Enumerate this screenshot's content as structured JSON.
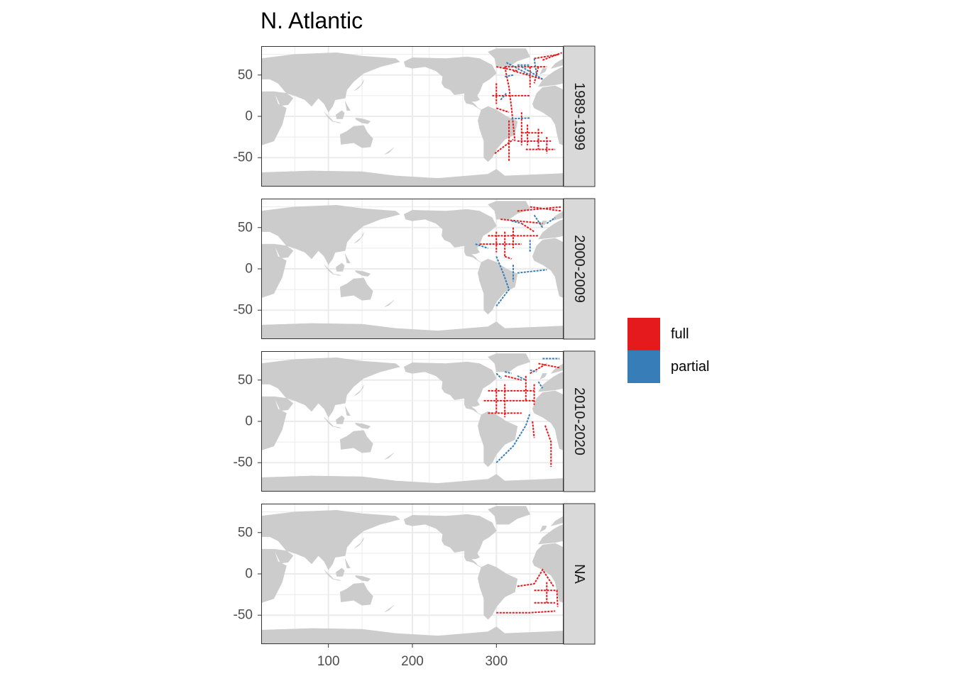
{
  "chart_data": {
    "type": "map-faceted",
    "title": "N. Atlantic",
    "xlabel": "",
    "ylabel": "",
    "xlim": [
      20,
      380
    ],
    "ylim": [
      -85,
      85
    ],
    "x_ticks": [
      100,
      200,
      300
    ],
    "x_tick_labels": [
      "100",
      "200",
      "300"
    ],
    "y_ticks": [
      50,
      0,
      -50
    ],
    "y_tick_labels": [
      "50",
      "0",
      "-50"
    ],
    "grid": true,
    "legend": {
      "placement": "right",
      "title": "",
      "entries": [
        {
          "label": "full",
          "color": "#e41a1c"
        },
        {
          "label": "partial",
          "color": "#377eb8"
        }
      ]
    },
    "facets": [
      {
        "label": "1989-1999",
        "tracks": [
          {
            "type": "full",
            "points": [
              [
                310,
                60
              ],
              [
                315,
                35
              ],
              [
                318,
                10
              ],
              [
                320,
                -10
              ],
              [
                322,
                -30
              ]
            ]
          },
          {
            "type": "full",
            "points": [
              [
                295,
                25
              ],
              [
                340,
                25
              ]
            ]
          },
          {
            "type": "full",
            "points": [
              [
                300,
                40
              ],
              [
                300,
                15
              ]
            ]
          },
          {
            "type": "full",
            "points": [
              [
                315,
                -5
              ],
              [
                315,
                -55
              ]
            ]
          },
          {
            "type": "full",
            "points": [
              [
                330,
                5
              ],
              [
                330,
                -35
              ]
            ]
          },
          {
            "type": "full",
            "points": [
              [
                337,
                -10
              ],
              [
                337,
                -35
              ]
            ]
          },
          {
            "type": "full",
            "points": [
              [
                350,
                -15
              ],
              [
                350,
                -40
              ]
            ]
          },
          {
            "type": "full",
            "points": [
              [
                360,
                -25
              ],
              [
                360,
                -45
              ]
            ]
          },
          {
            "type": "full",
            "points": [
              [
                330,
                -20
              ],
              [
                355,
                -20
              ]
            ]
          },
          {
            "type": "full",
            "points": [
              [
                325,
                -30
              ],
              [
                365,
                -30
              ]
            ]
          },
          {
            "type": "full",
            "points": [
              [
                298,
                -45
              ],
              [
                320,
                -28
              ]
            ]
          },
          {
            "type": "full",
            "points": [
              [
                335,
                -40
              ],
              [
                370,
                -40
              ]
            ]
          },
          {
            "type": "full",
            "points": [
              [
                300,
                10
              ],
              [
                315,
                5
              ]
            ]
          },
          {
            "type": "full",
            "points": [
              [
                310,
                60
              ],
              [
                360,
                60
              ]
            ]
          },
          {
            "type": "full",
            "points": [
              [
                320,
                55
              ],
              [
                355,
                45
              ]
            ]
          },
          {
            "type": "full",
            "points": [
              [
                345,
                70
              ],
              [
                375,
                75
              ]
            ]
          },
          {
            "type": "full",
            "points": [
              [
                355,
                68
              ],
              [
                378,
                77
              ]
            ]
          },
          {
            "type": "full",
            "points": [
              [
                340,
                60
              ],
              [
                340,
                35
              ]
            ]
          },
          {
            "type": "full",
            "points": [
              [
                350,
                60
              ],
              [
                345,
                40
              ]
            ]
          },
          {
            "type": "full",
            "points": [
              [
                300,
                60
              ],
              [
                325,
                55
              ]
            ]
          },
          {
            "type": "partial",
            "points": [
              [
                312,
                65
              ],
              [
                340,
                50
              ]
            ]
          },
          {
            "type": "partial",
            "points": [
              [
                330,
                60
              ],
              [
                355,
                45
              ]
            ]
          },
          {
            "type": "partial",
            "points": [
              [
                310,
                48
              ],
              [
                320,
                50
              ]
            ]
          },
          {
            "type": "partial",
            "points": [
              [
                318,
                -3
              ],
              [
                340,
                -2
              ]
            ]
          },
          {
            "type": "partial",
            "points": [
              [
                345,
                70
              ],
              [
                348,
                50
              ]
            ]
          },
          {
            "type": "partial",
            "points": [
              [
                325,
                62
              ],
              [
                340,
                62
              ]
            ]
          },
          {
            "type": "partial",
            "points": [
              [
                305,
                20
              ],
              [
                312,
                28
              ]
            ]
          }
        ]
      },
      {
        "label": "2000-2009",
        "tracks": [
          {
            "type": "full",
            "points": [
              [
                290,
                40
              ],
              [
                350,
                40
              ]
            ]
          },
          {
            "type": "full",
            "points": [
              [
                280,
                30
              ],
              [
                330,
                30
              ]
            ]
          },
          {
            "type": "full",
            "points": [
              [
                300,
                45
              ],
              [
                300,
                20
              ]
            ]
          },
          {
            "type": "full",
            "points": [
              [
                310,
                45
              ],
              [
                310,
                15
              ]
            ]
          },
          {
            "type": "full",
            "points": [
              [
                320,
                50
              ],
              [
                320,
                25
              ]
            ]
          },
          {
            "type": "full",
            "points": [
              [
                305,
                60
              ],
              [
                355,
                55
              ]
            ]
          },
          {
            "type": "full",
            "points": [
              [
                325,
                70
              ],
              [
                378,
                75
              ]
            ]
          },
          {
            "type": "full",
            "points": [
              [
                340,
                75
              ],
              [
                378,
                70
              ]
            ]
          },
          {
            "type": "full",
            "points": [
              [
                330,
                55
              ],
              [
                345,
                45
              ]
            ]
          },
          {
            "type": "full",
            "points": [
              [
                310,
                15
              ],
              [
                318,
                12
              ]
            ]
          },
          {
            "type": "partial",
            "points": [
              [
                300,
                15
              ],
              [
                308,
                -5
              ],
              [
                315,
                -25
              ],
              [
                300,
                -45
              ]
            ]
          },
          {
            "type": "partial",
            "points": [
              [
                325,
                -5
              ],
              [
                360,
                -1
              ]
            ]
          },
          {
            "type": "partial",
            "points": [
              [
                340,
                35
              ],
              [
                340,
                20
              ]
            ]
          },
          {
            "type": "partial",
            "points": [
              [
                345,
                65
              ],
              [
                355,
                50
              ]
            ]
          },
          {
            "type": "partial",
            "points": [
              [
                360,
                55
              ],
              [
                370,
                62
              ]
            ]
          },
          {
            "type": "partial",
            "points": [
              [
                275,
                30
              ],
              [
                290,
                25
              ]
            ]
          },
          {
            "type": "partial",
            "points": [
              [
                318,
                58
              ],
              [
                330,
                55
              ]
            ]
          },
          {
            "type": "partial",
            "points": [
              [
                320,
                5
              ],
              [
                320,
                -15
              ]
            ]
          }
        ]
      },
      {
        "label": "2010-2020",
        "tracks": [
          {
            "type": "full",
            "points": [
              [
                290,
                37
              ],
              [
                345,
                37
              ]
            ]
          },
          {
            "type": "full",
            "points": [
              [
                285,
                25
              ],
              [
                345,
                25
              ]
            ]
          },
          {
            "type": "full",
            "points": [
              [
                290,
                10
              ],
              [
                330,
                10
              ]
            ]
          },
          {
            "type": "full",
            "points": [
              [
                300,
                40
              ],
              [
                300,
                10
              ]
            ]
          },
          {
            "type": "full",
            "points": [
              [
                310,
                45
              ],
              [
                310,
                5
              ]
            ]
          },
          {
            "type": "full",
            "points": [
              [
                335,
                55
              ],
              [
                335,
                25
              ]
            ]
          },
          {
            "type": "full",
            "points": [
              [
                345,
                45
              ],
              [
                345,
                20
              ]
            ]
          },
          {
            "type": "full",
            "points": [
              [
                310,
                55
              ],
              [
                330,
                50
              ]
            ]
          },
          {
            "type": "full",
            "points": [
              [
                340,
                58
              ],
              [
                360,
                70
              ]
            ]
          },
          {
            "type": "full",
            "points": [
              [
                350,
                70
              ],
              [
                375,
                65
              ]
            ]
          },
          {
            "type": "full",
            "points": [
              [
                358,
                -5
              ],
              [
                365,
                -25
              ],
              [
                365,
                -55
              ]
            ]
          },
          {
            "type": "full",
            "points": [
              [
                343,
                0
              ],
              [
                345,
                -20
              ]
            ]
          },
          {
            "type": "partial",
            "points": [
              [
                300,
                -50
              ],
              [
                320,
                -30
              ],
              [
                335,
                -5
              ],
              [
                340,
                10
              ]
            ]
          },
          {
            "type": "partial",
            "points": [
              [
                325,
                55
              ],
              [
                335,
                50
              ]
            ]
          },
          {
            "type": "partial",
            "points": [
              [
                310,
                60
              ],
              [
                318,
                58
              ]
            ]
          },
          {
            "type": "partial",
            "points": [
              [
                340,
                62
              ],
              [
                348,
                60
              ]
            ]
          },
          {
            "type": "partial",
            "points": [
              [
                355,
                76
              ],
              [
                375,
                76
              ]
            ]
          },
          {
            "type": "partial",
            "points": [
              [
                350,
                48
              ],
              [
                355,
                40
              ]
            ]
          },
          {
            "type": "partial",
            "points": [
              [
                300,
                58
              ],
              [
                306,
                52
              ]
            ]
          }
        ]
      },
      {
        "label": "NA",
        "tracks": [
          {
            "type": "full",
            "points": [
              [
                300,
                -47
              ],
              [
                340,
                -47
              ],
              [
                370,
                -45
              ]
            ]
          },
          {
            "type": "full",
            "points": [
              [
                345,
                -20
              ],
              [
                372,
                -20
              ],
              [
                373,
                -40
              ]
            ]
          },
          {
            "type": "full",
            "points": [
              [
                325,
                -15
              ],
              [
                345,
                -12
              ],
              [
                355,
                5
              ],
              [
                368,
                -15
              ]
            ]
          },
          {
            "type": "full",
            "points": [
              [
                345,
                -35
              ],
              [
                370,
                -35
              ]
            ]
          },
          {
            "type": "full",
            "points": [
              [
                360,
                -10
              ],
              [
                360,
                -35
              ]
            ]
          }
        ]
      }
    ]
  }
}
